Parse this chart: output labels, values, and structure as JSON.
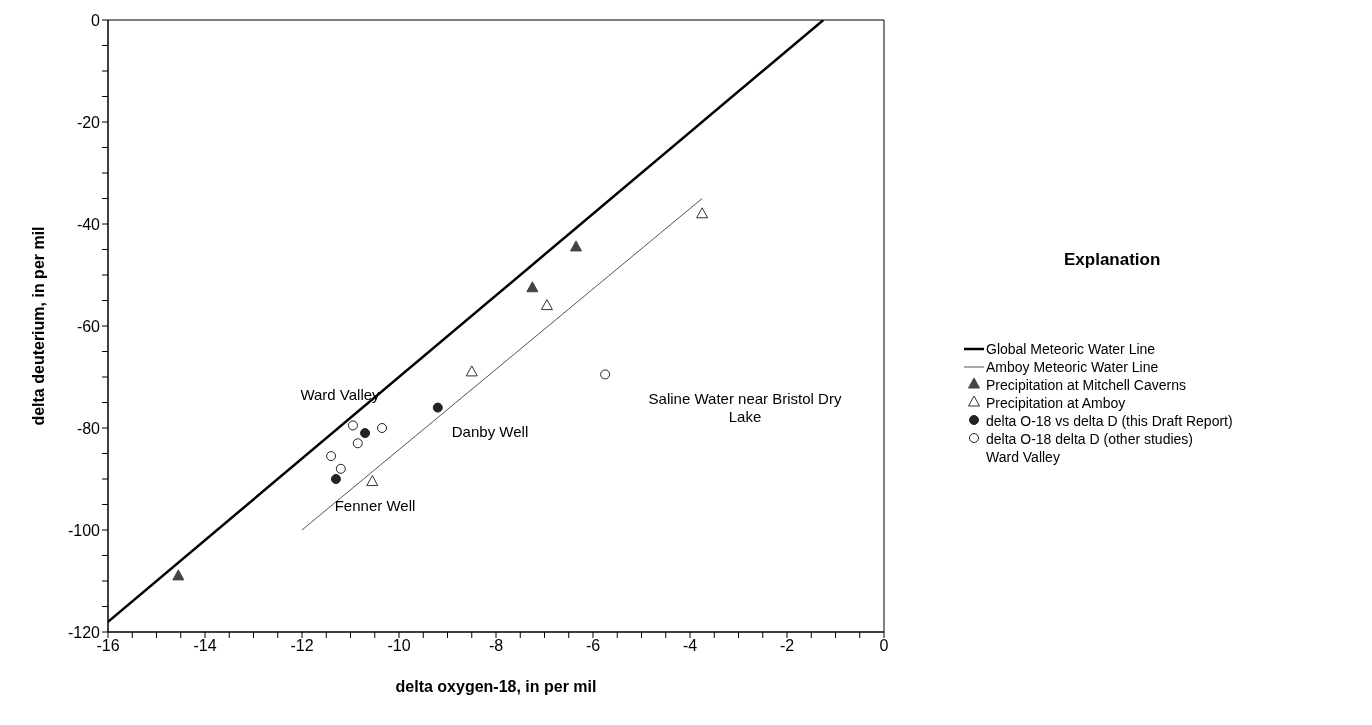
{
  "chart_data": {
    "type": "scatter",
    "xlabel": "delta oxygen-18, in per mil",
    "ylabel": "delta deuterium, in per mil",
    "legend_title": "Explanation",
    "legend": "right",
    "grid": false,
    "xlim": [
      -16,
      0
    ],
    "ylim": [
      -120,
      0
    ],
    "xticks": [
      -16,
      {
        "value": -15.5,
        "label": null
      },
      {
        "value": -15,
        "label": null
      },
      {
        "value": -14.5,
        "label": null
      },
      -14,
      {
        "value": -13.5,
        "label": null
      },
      {
        "value": -13,
        "label": null
      },
      {
        "value": -12.5,
        "label": null
      },
      -12,
      {
        "value": -11.5,
        "label": null
      },
      {
        "value": -11,
        "label": null
      },
      {
        "value": -10.5,
        "label": null
      },
      -10,
      {
        "value": -9.5,
        "label": null
      },
      {
        "value": -9,
        "label": null
      },
      {
        "value": -8.5,
        "label": null
      },
      -8,
      {
        "value": -7.5,
        "label": null
      },
      {
        "value": -7,
        "label": null
      },
      {
        "value": -6.5,
        "label": null
      },
      -6,
      {
        "value": -5.5,
        "label": null
      },
      {
        "value": -5,
        "label": null
      },
      {
        "value": -4.5,
        "label": null
      },
      -4,
      {
        "value": -3.5,
        "label": null
      },
      {
        "value": -3,
        "label": null
      },
      {
        "value": -2.5,
        "label": null
      },
      -2,
      {
        "value": -1.5,
        "label": null
      },
      {
        "value": -1,
        "label": null
      },
      {
        "value": -0.5,
        "label": null
      },
      0
    ],
    "yticks": [
      -120,
      {
        "value": -115,
        "label": null
      },
      {
        "value": -110,
        "label": null
      },
      {
        "value": -105,
        "label": null
      },
      -100,
      {
        "value": -95,
        "label": null
      },
      {
        "value": -90,
        "label": null
      },
      {
        "value": -85,
        "label": null
      },
      -80,
      {
        "value": -75,
        "label": null
      },
      {
        "value": -70,
        "label": null
      },
      {
        "value": -65,
        "label": null
      },
      -60,
      {
        "value": -55,
        "label": null
      },
      {
        "value": -50,
        "label": null
      },
      {
        "value": -45,
        "label": null
      },
      -40,
      {
        "value": -35,
        "label": null
      },
      {
        "value": -30,
        "label": null
      },
      {
        "value": -25,
        "label": null
      },
      -20,
      {
        "value": -15,
        "label": null
      },
      {
        "value": -10,
        "label": null
      },
      {
        "value": -5,
        "label": null
      },
      0
    ],
    "series": [
      {
        "name": "Global Meteoric Water Line",
        "type": "line",
        "marker": "none",
        "color": "#000000",
        "x": [
          -16,
          -1.25
        ],
        "values": [
          -118,
          0
        ]
      },
      {
        "name": "Amboy Meteoric Water Line",
        "type": "line",
        "marker": "none",
        "color": "#555555",
        "x": [
          -12,
          -3.75
        ],
        "values": [
          -100,
          -35
        ]
      },
      {
        "name": "Precipitation at Mitchell Caverns",
        "marker": "triangle",
        "color": "#444444",
        "x": [
          -14.55,
          -7.25,
          -6.35
        ],
        "values": [
          -109,
          -52.5,
          -44.5
        ]
      },
      {
        "name": "Precipitation at Amboy",
        "marker": "triangle-open",
        "color": "#333333",
        "x": [
          -10.55,
          -8.5,
          -6.95,
          -3.75
        ],
        "values": [
          -90.5,
          -69,
          -56,
          -38
        ]
      },
      {
        "name": "delta O-18 vs delta D (this Draft Report)",
        "marker": "circle",
        "color": "#222222",
        "x": [
          -11.3,
          -10.7,
          -9.2
        ],
        "values": [
          -90,
          -81,
          -76
        ]
      },
      {
        "name": "delta O-18 delta D (other studies)\nWard Valley",
        "marker": "circle-open",
        "color": "#222222",
        "x": [
          -11.4,
          -11.2,
          -10.95,
          -10.85,
          -10.35,
          -5.75
        ],
        "values": [
          -85.5,
          -88,
          -79.5,
          -83,
          -80,
          -69.5
        ]
      }
    ],
    "annotations": [
      "Ward Valley",
      "Danby Well",
      "Fenner Well",
      "Saline Water near Bristol Dry\nLake"
    ]
  }
}
